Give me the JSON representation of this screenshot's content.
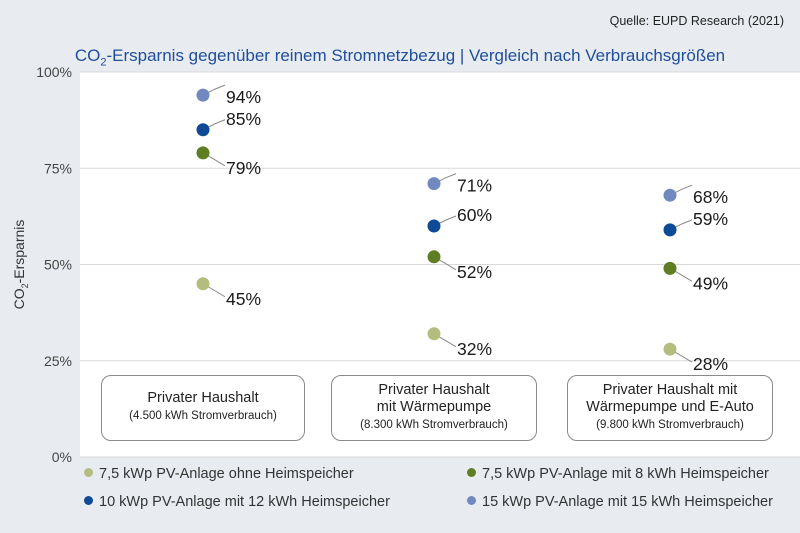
{
  "source": "Quelle: EUPD Research (2021)",
  "title": {
    "prefix": "CO",
    "sub": "2",
    "suffix": "-Ersparnis gegenüber reinem Stromnetzbezug | Vergleich nach Verbrauchsgrößen"
  },
  "chart_data": {
    "type": "scatter",
    "ylabel": "CO2-Ersparnis",
    "ylabel_parts": {
      "prefix": "CO",
      "sub": "2",
      "suffix": "-Ersparnis"
    },
    "ylim": [
      0,
      100
    ],
    "yticks": [
      "0%",
      "25%",
      "50%",
      "75%",
      "100%"
    ],
    "ytick_values": [
      0,
      25,
      50,
      75,
      100
    ],
    "grid": true,
    "legend_position": "bottom",
    "categories": [
      {
        "name": "Privater Haushalt",
        "sub": "(4.500 kWh Stromverbrauch)"
      },
      {
        "name": "Privater Haushalt\nmit Wärmepumpe",
        "sub": "(8.300 kWh Stromverbrauch)"
      },
      {
        "name": "Privater Haushalt mit\nWärmepumpe und E-Auto",
        "sub": "(9.800 kWh Stromverbrauch)"
      }
    ],
    "series": [
      {
        "name": "7,5 kWp PV-Anlage ohne Heimspeicher",
        "color": "#b5bd7e",
        "values": [
          45,
          32,
          28
        ]
      },
      {
        "name": "7,5 kWp PV-Anlage mit 8 kWh Heimspeicher",
        "color": "#5f7d23",
        "values": [
          79,
          52,
          49
        ]
      },
      {
        "name": "10 kWp PV-Anlage mit 12 kWh Heimspeicher",
        "color": "#0e4a96",
        "values": [
          85,
          60,
          59
        ]
      },
      {
        "name": "15 kWp PV-Anlage mit 15 kWh Heimspeicher",
        "color": "#7189bf",
        "values": [
          94,
          71,
          68
        ]
      }
    ]
  }
}
